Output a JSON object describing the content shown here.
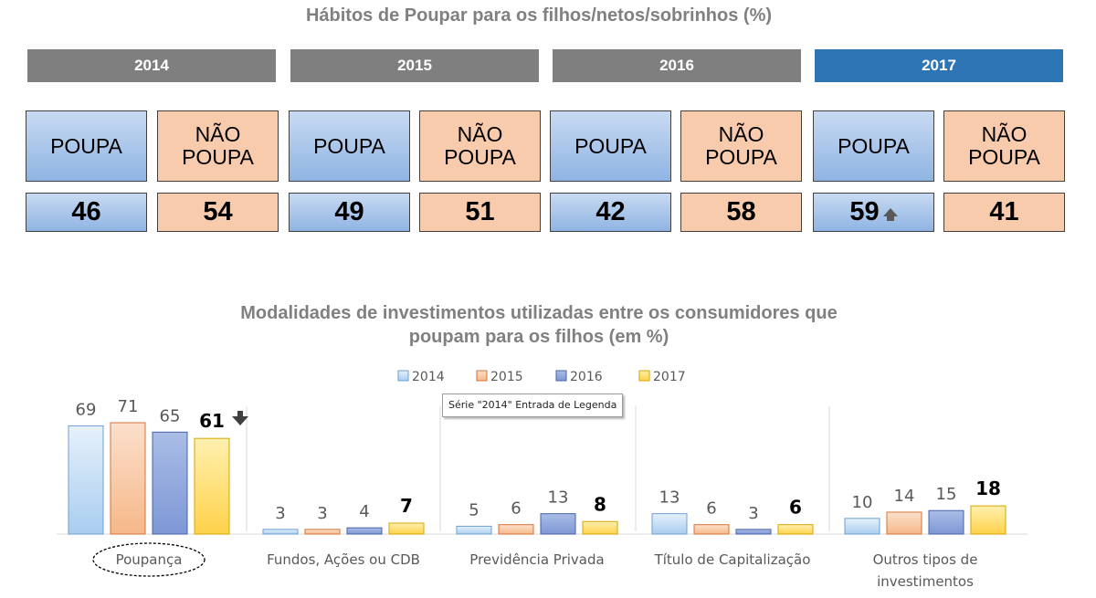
{
  "top_section": {
    "title": "Hábitos de Poupar para os filhos/netos/sobrinhos (%)",
    "poupa_label": "POUPA",
    "nao_label_line1": "NÃO",
    "nao_label_line2": "POUPA",
    "years": [
      {
        "year": "2014",
        "poupa": "46",
        "nao_poupa": "54",
        "highlight": false
      },
      {
        "year": "2015",
        "poupa": "49",
        "nao_poupa": "51",
        "highlight": false
      },
      {
        "year": "2016",
        "poupa": "42",
        "nao_poupa": "58",
        "highlight": false
      },
      {
        "year": "2017",
        "poupa": "59",
        "nao_poupa": "41",
        "highlight": true
      }
    ]
  },
  "tooltip": "Série \"2014\" Entrada de Legenda",
  "colors": {
    "header_gray": "#7f7f7f",
    "header_blue": "#2e75b6",
    "poupa_blue": "#8fb4e3",
    "nao_orange": "#f8cbad",
    "s2014": "#bdd7ee",
    "s2015": "#f4b183",
    "s2016": "#8faadc",
    "s2017": "#ffd966"
  },
  "chart_data": {
    "type": "bar",
    "title_line1": "Modalidades de investimentos utilizadas entre os consumidores que",
    "title_line2": "poupam para os filhos (em %)",
    "categories": [
      "Poupança",
      "Fundos, Ações ou CDB",
      "Previdência Privada",
      "Título de Capitalização",
      "Outros tipos de investimentos"
    ],
    "category_lines": [
      [
        "Poupança"
      ],
      [
        "Fundos, Ações ou CDB"
      ],
      [
        "Previdência Privada"
      ],
      [
        "Título de Capitalização"
      ],
      [
        "Outros tipos de",
        "investimentos"
      ]
    ],
    "series": [
      {
        "name": "2014",
        "values": [
          69,
          3,
          5,
          13,
          10
        ]
      },
      {
        "name": "2015",
        "values": [
          71,
          3,
          6,
          6,
          14
        ]
      },
      {
        "name": "2016",
        "values": [
          65,
          4,
          13,
          3,
          15
        ]
      },
      {
        "name": "2017",
        "values": [
          61,
          7,
          8,
          6,
          18
        ]
      }
    ],
    "ylim": [
      0,
      71
    ],
    "legend_position": "top-center",
    "annotations": [
      {
        "category": "Poupança",
        "series": "2017",
        "marker": "down-arrow"
      },
      {
        "category": "Poupança",
        "marker": "dashed-ellipse-around-label"
      }
    ]
  }
}
